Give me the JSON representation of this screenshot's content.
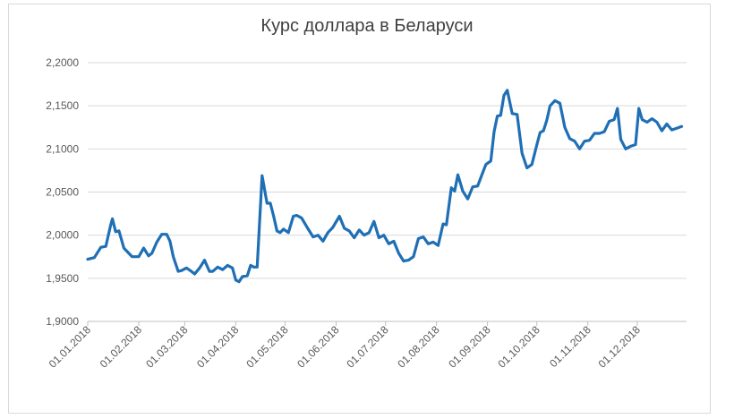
{
  "chart_data": {
    "type": "line",
    "title": "Курс доллара в Беларуси",
    "xlabel": "",
    "ylabel": "",
    "ylim": [
      1.9,
      2.2
    ],
    "yticks": [
      "1,9000",
      "1,9500",
      "2,0000",
      "2,0500",
      "2,1000",
      "2,1500",
      "2,2000"
    ],
    "xticks": [
      "01.01.2018",
      "01.02.2018",
      "01.03.2018",
      "01.04.2018",
      "01.05.2018",
      "01.06.2018",
      "01.07.2018",
      "01.08.2018",
      "01.09.2018",
      "01.10.2018",
      "01.11.2018",
      "01.12.2018"
    ],
    "grid": true,
    "legend": "none",
    "line_color": "#1f6fb5",
    "series": [
      {
        "x": [
          "01.01.2018",
          "05.01.2018",
          "09.01.2018",
          "12.01.2018",
          "15.01.2018",
          "16.01.2018",
          "18.01.2018",
          "20.01.2018",
          "23.01.2018",
          "26.01.2018",
          "28.01.2018",
          "01.02.2018",
          "04.02.2018",
          "07.02.2018",
          "09.02.2018",
          "12.02.2018",
          "15.02.2018",
          "18.02.2018",
          "20.02.2018",
          "22.02.2018",
          "25.02.2018",
          "27.02.2018",
          "02.03.2018",
          "05.03.2018",
          "07.03.2018",
          "10.03.2018",
          "13.03.2018",
          "16.03.2018",
          "18.03.2018",
          "21.03.2018",
          "24.03.2018",
          "27.03.2018",
          "30.03.2018",
          "01.04.2018",
          "03.04.2018",
          "05.04.2018",
          "08.04.2018",
          "10.04.2018",
          "12.04.2018",
          "14.04.2018",
          "17.04.2018",
          "20.04.2018",
          "22.04.2018",
          "24.04.2018",
          "26.04.2018",
          "28.04.2018",
          "30.04.2018",
          "03.05.2018",
          "06.05.2018",
          "08.05.2018",
          "11.05.2018",
          "15.05.2018",
          "18.05.2018",
          "21.05.2018",
          "24.05.2018",
          "27.05.2018",
          "30.05.2018",
          "03.06.2018",
          "06.06.2018",
          "09.06.2018",
          "12.06.2018",
          "15.06.2018",
          "18.06.2018",
          "21.06.2018",
          "24.06.2018",
          "27.06.2018",
          "30.06.2018",
          "03.07.2018",
          "06.07.2018",
          "09.07.2018",
          "12.07.2018",
          "15.07.2018",
          "18.07.2018",
          "21.07.2018",
          "24.07.2018",
          "27.07.2018",
          "30.07.2018",
          "02.08.2018",
          "05.08.2018",
          "07.08.2018",
          "10.08.2018",
          "12.08.2018",
          "14.08.2018",
          "17.08.2018",
          "20.08.2018",
          "23.08.2018",
          "26.08.2018",
          "29.08.2018",
          "31.08.2018",
          "03.09.2018",
          "05.09.2018",
          "07.09.2018",
          "09.09.2018",
          "11.09.2018",
          "13.09.2018",
          "16.09.2018",
          "19.09.2018",
          "22.09.2018",
          "25.09.2018",
          "28.09.2018",
          "01.10.2018",
          "03.10.2018",
          "05.10.2018",
          "07.10.2018",
          "09.10.2018",
          "12.10.2018",
          "15.10.2018",
          "18.10.2018",
          "21.10.2018",
          "24.10.2018",
          "27.10.2018",
          "30.10.2018",
          "02.11.2018",
          "05.11.2018",
          "08.11.2018",
          "11.11.2018",
          "14.11.2018",
          "17.11.2018",
          "19.11.2018",
          "21.11.2018",
          "24.11.2018",
          "27.11.2018",
          "30.11.2018",
          "02.12.2018",
          "04.12.2018",
          "07.12.2018",
          "10.12.2018",
          "13.12.2018",
          "16.12.2018",
          "19.12.2018",
          "22.12.2018",
          "25.12.2018",
          "28.12.2018"
        ],
        "y": [
          1.972,
          1.974,
          1.986,
          1.987,
          2.012,
          2.019,
          2.004,
          2.005,
          1.985,
          1.979,
          1.975,
          1.975,
          1.985,
          1.976,
          1.979,
          1.992,
          2.001,
          2.001,
          1.993,
          1.975,
          1.958,
          1.959,
          1.962,
          1.958,
          1.955,
          1.962,
          1.971,
          1.958,
          1.958,
          1.963,
          1.96,
          1.965,
          1.962,
          1.948,
          1.946,
          1.952,
          1.953,
          1.965,
          1.963,
          1.963,
          2.069,
          2.037,
          2.037,
          2.022,
          2.005,
          2.003,
          2.007,
          2.003,
          2.022,
          2.023,
          2.02,
          2.007,
          1.998,
          2.0,
          1.993,
          2.003,
          2.009,
          2.022,
          2.008,
          2.005,
          1.997,
          2.006,
          2.0,
          2.003,
          2.016,
          1.997,
          2.0,
          1.99,
          1.993,
          1.979,
          1.97,
          1.971,
          1.975,
          1.996,
          1.998,
          1.99,
          1.992,
          1.988,
          2.013,
          2.012,
          2.055,
          2.051,
          2.07,
          2.051,
          2.042,
          2.056,
          2.057,
          2.072,
          2.082,
          2.086,
          2.12,
          2.138,
          2.139,
          2.162,
          2.168,
          2.141,
          2.14,
          2.095,
          2.078,
          2.082,
          2.105,
          2.119,
          2.121,
          2.133,
          2.15,
          2.156,
          2.153,
          2.125,
          2.112,
          2.109,
          2.1,
          2.109,
          2.11,
          2.118,
          2.118,
          2.12,
          2.132,
          2.134,
          2.147,
          2.111,
          2.1,
          2.103,
          2.105,
          2.147,
          2.134,
          2.131,
          2.135,
          2.131,
          2.121,
          2.129,
          2.122,
          2.124,
          2.126
        ]
      }
    ]
  }
}
